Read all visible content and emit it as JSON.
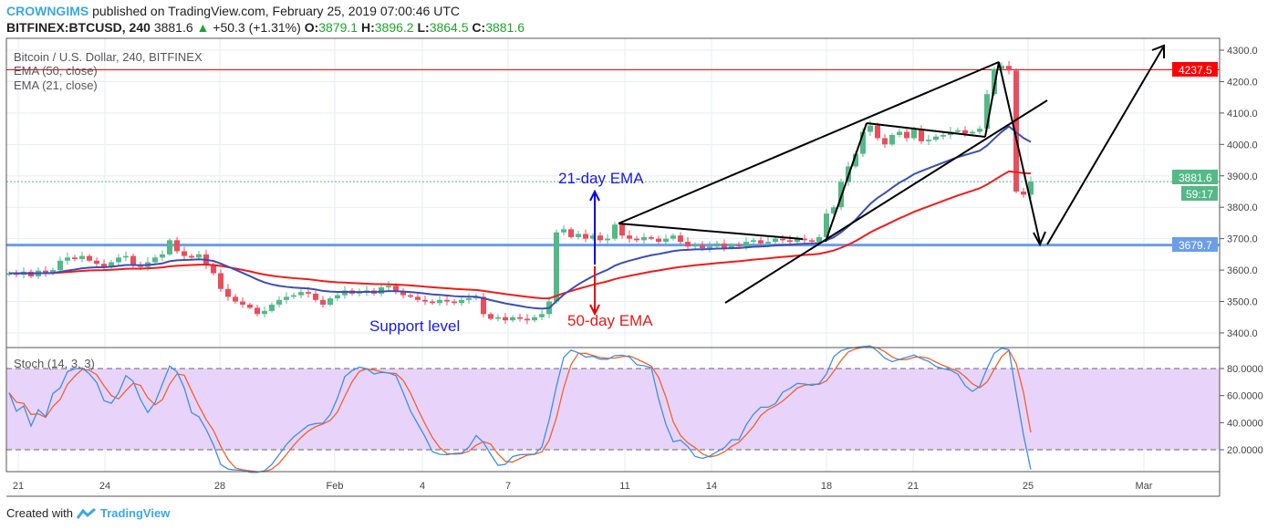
{
  "header": {
    "author": "CROWNGIMS",
    "published": "published on TradingView.com, February 25, 2019 07:00:46 UTC",
    "symbol": "BITFINEX:BTCUSD, 240",
    "last": "3881.6",
    "change": "+50.3 (+1.31%)",
    "o_label": "O:",
    "o": "3879.1",
    "h_label": "H:",
    "h": "3896.2",
    "l_label": "L:",
    "l": "3864.5",
    "c_label": "C:",
    "c": "3881.6"
  },
  "legend": {
    "title": "Bitcoin / U.S. Dollar, 240, BITFINEX",
    "ema50": "EMA (50, close)",
    "ema21": "EMA (21, close)",
    "stoch": "Stoch (14, 3, 3)"
  },
  "annotations": {
    "ema21": "21-day EMA",
    "ema50": "50-day EMA",
    "support": "Support level"
  },
  "badges": {
    "resistance": "4237.5",
    "last": "3881.6",
    "countdown": "59:17",
    "support": "3679.7"
  },
  "colors": {
    "up": "#53b987",
    "down": "#eb4d5c",
    "ema50": "#f21b1b",
    "ema21": "#3c4fb4",
    "resistance": "#ff0000",
    "support": "#6b9ee8",
    "stoch_k": "#3d8fe0",
    "stoch_d": "#f2602e",
    "stoch_band": "#e8d4fb"
  },
  "footer": {
    "created": "Created with",
    "brand": "TradingView"
  },
  "chart_data": [
    {
      "type": "candlestick",
      "timeframe": "240",
      "ylim": [
        3380,
        4320
      ],
      "yticks": [
        "4300.0",
        "4200.0",
        "4100.0",
        "4000.0",
        "3900.0",
        "3800.0",
        "3700.0",
        "3600.0",
        "3500.0",
        "3400.0"
      ],
      "xticks": [
        "21",
        "24",
        "28",
        "Feb",
        "4",
        "7",
        "11",
        "14",
        "18",
        "21",
        "25",
        "Mar"
      ],
      "horizontal_levels": {
        "resistance": 4237.5,
        "support": 3679.7,
        "last": 3881.6
      },
      "close": [
        3590,
        3585,
        3595,
        3580,
        3598,
        3590,
        3600,
        3630,
        3640,
        3635,
        3645,
        3630,
        3620,
        3610,
        3625,
        3640,
        3645,
        3615,
        3610,
        3625,
        3640,
        3650,
        3695,
        3660,
        3645,
        3640,
        3650,
        3615,
        3590,
        3540,
        3515,
        3500,
        3490,
        3480,
        3460,
        3470,
        3490,
        3505,
        3515,
        3520,
        3530,
        3525,
        3505,
        3490,
        3510,
        3520,
        3535,
        3525,
        3530,
        3535,
        3525,
        3545,
        3550,
        3530,
        3520,
        3515,
        3505,
        3500,
        3495,
        3505,
        3500,
        3495,
        3505,
        3510,
        3515,
        3460,
        3445,
        3450,
        3440,
        3450,
        3445,
        3440,
        3450,
        3460,
        3500,
        3720,
        3730,
        3705,
        3715,
        3700,
        3710,
        3695,
        3700,
        3745,
        3710,
        3700,
        3695,
        3705,
        3700,
        3690,
        3700,
        3710,
        3690,
        3675,
        3680,
        3670,
        3675,
        3685,
        3670,
        3680,
        3675,
        3690,
        3695,
        3685,
        3690,
        3700,
        3695,
        3690,
        3700,
        3695,
        3690,
        3705,
        3780,
        3800,
        3880,
        3930,
        3970,
        4040,
        4060,
        4020,
        4000,
        4030,
        4040,
        4020,
        4050,
        4010,
        4015,
        4025,
        4030,
        4040,
        4045,
        4035,
        4040,
        4050,
        4160,
        4240,
        4250,
        4235,
        3850,
        3840,
        3881.6
      ],
      "indicators": [
        "EMA (50, close)",
        "EMA (21, close)"
      ]
    },
    {
      "type": "line",
      "title": "Stoch (14, 3, 3)",
      "ylim": [
        5,
        95
      ],
      "yticks": [
        "80.0000",
        "60.0000",
        "40.0000",
        "20.0000"
      ],
      "band": [
        20,
        80
      ]
    }
  ]
}
